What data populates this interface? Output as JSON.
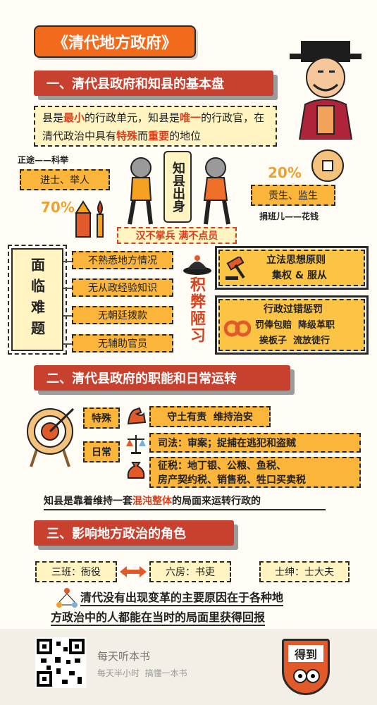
{
  "title": "《清代地方政府》",
  "section1": {
    "heading": "一、清代县政府和知县的基本盘",
    "intro": {
      "p1": "县是",
      "h1": "最小",
      "p2": "的行政单元，知县是",
      "h2": "唯一",
      "p3": "的行政官，在清代政治中具有",
      "h3": "特殊",
      "p4": "而",
      "h4": "重要",
      "p5": "的地位"
    },
    "origin_label": "知县出身",
    "left_path": {
      "title": "正途——科举",
      "box": "进士、举人",
      "percent": "70%"
    },
    "right_path": {
      "title": "捐班儿——花钱",
      "box": "贡生、监生",
      "percent": "20%"
    },
    "motto": "汉不掌兵 满不点员",
    "difficulties_label": "面临难题",
    "difficulties": [
      "不熟悉地方情况",
      "无从政经验知识",
      "无朝廷拨款",
      "无辅助官员"
    ],
    "accumulated_label": "积弊陋习",
    "principle": {
      "title": "立法思想原则",
      "body": "集权 & 服从"
    },
    "punishment": {
      "title": "行政过错惩罚",
      "line1": "罚俸包赔  降级革职",
      "line2": "挨板子  流放徒行"
    }
  },
  "section2": {
    "heading": "二、清代县政府的职能和日常运转",
    "special_label": "特殊",
    "daily_label": "日常",
    "special_duty": "守土有责  维持治安",
    "judicial": "司法：审案；捉捕在逃犯和盗贼",
    "tax_line1": "征税：地丁银、公粮、鱼税、",
    "tax_line2": "房产契约税、销售税、牲口买卖税",
    "summary_p1": "知县是靠着维持一套",
    "summary_h": "混沌整体",
    "summary_p2": "的局面来运转行政的"
  },
  "section3": {
    "heading": "三、影响地方政治的角色",
    "roles": [
      "三班：衙役",
      "六房：书吏",
      "士绅：士大夫"
    ],
    "conclusion_line1": "清代没有出现变革的主要原因在于各种地",
    "conclusion_line2": "方政治中的人都能在当时的局面里获得回报"
  },
  "footer": {
    "app_name": "每天听本书",
    "slogan": "每天半小时  搞懂一本书",
    "logo_text": "得到"
  },
  "colors": {
    "accent": "#f26b1d",
    "section": "#c8412e",
    "box": "#fbb53b",
    "highlight": "#d6421e"
  }
}
